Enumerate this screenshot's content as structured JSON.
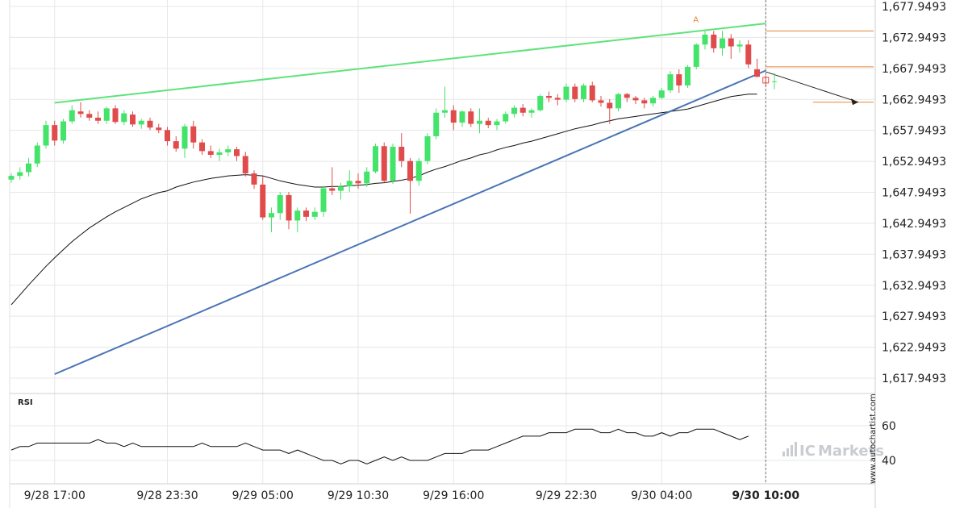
{
  "chart_data": {
    "type": "candlestick",
    "y_ticks": [
      "1,677.9493",
      "1,672.9493",
      "1,667.9493",
      "1,662.9493",
      "1,657.9493",
      "1,652.9493",
      "1,647.9493",
      "1,642.9493",
      "1,637.9493",
      "1,632.9493",
      "1,627.9493",
      "1,622.9493",
      "1,617.9493"
    ],
    "y_tick_values": [
      1677.9493,
      1672.9493,
      1667.9493,
      1662.9493,
      1657.9493,
      1652.9493,
      1647.9493,
      1642.9493,
      1637.9493,
      1632.9493,
      1627.9493,
      1622.9493,
      1617.9493
    ],
    "x_ticks": [
      {
        "label": "9/28 17:00",
        "bar": 5,
        "bold": false
      },
      {
        "label": "9/28 23:30",
        "bar": 18,
        "bold": false
      },
      {
        "label": "9/29 05:00",
        "bar": 29,
        "bold": false
      },
      {
        "label": "9/29 10:30",
        "bar": 40,
        "bold": false
      },
      {
        "label": "9/29 16:00",
        "bar": 51,
        "bold": false
      },
      {
        "label": "9/29 22:30",
        "bar": 64,
        "bold": false
      },
      {
        "label": "9/30 04:00",
        "bar": 75,
        "bold": false
      },
      {
        "label": "9/30 10:00",
        "bar": 87,
        "bold": true
      }
    ],
    "candles": [
      [
        1650.0,
        1651.0,
        1649.5,
        1650.6
      ],
      [
        1650.6,
        1652.0,
        1650.0,
        1651.2
      ],
      [
        1651.2,
        1653.5,
        1650.5,
        1652.6
      ],
      [
        1652.6,
        1656.0,
        1652.0,
        1655.5
      ],
      [
        1655.5,
        1659.5,
        1655.0,
        1658.8
      ],
      [
        1658.8,
        1659.5,
        1655.5,
        1656.3
      ],
      [
        1656.3,
        1659.8,
        1655.8,
        1659.4
      ],
      [
        1659.4,
        1662.0,
        1659.0,
        1661.2
      ],
      [
        1661.0,
        1662.5,
        1660.0,
        1660.6
      ],
      [
        1660.6,
        1661.2,
        1659.5,
        1660.0
      ],
      [
        1660.0,
        1661.0,
        1659.0,
        1659.5
      ],
      [
        1659.5,
        1661.8,
        1659.0,
        1661.5
      ],
      [
        1661.5,
        1662.0,
        1659.0,
        1659.3
      ],
      [
        1659.3,
        1661.2,
        1658.8,
        1660.7
      ],
      [
        1660.5,
        1661.0,
        1658.5,
        1658.9
      ],
      [
        1658.9,
        1659.8,
        1658.2,
        1659.5
      ],
      [
        1659.5,
        1660.0,
        1658.0,
        1658.4
      ],
      [
        1658.4,
        1659.0,
        1657.5,
        1658.0
      ],
      [
        1658.0,
        1658.5,
        1655.5,
        1656.2
      ],
      [
        1656.2,
        1657.0,
        1654.5,
        1655.0
      ],
      [
        1655.0,
        1659.0,
        1653.5,
        1658.6
      ],
      [
        1658.6,
        1659.5,
        1655.0,
        1656.0
      ],
      [
        1656.0,
        1656.5,
        1654.0,
        1654.6
      ],
      [
        1654.6,
        1655.5,
        1653.5,
        1654.0
      ],
      [
        1654.0,
        1655.0,
        1653.0,
        1654.4
      ],
      [
        1654.4,
        1655.5,
        1653.8,
        1654.9
      ],
      [
        1654.9,
        1655.3,
        1653.0,
        1653.8
      ],
      [
        1653.8,
        1654.5,
        1650.5,
        1651.0
      ],
      [
        1651.0,
        1651.5,
        1648.5,
        1649.2
      ],
      [
        1649.2,
        1650.5,
        1643.5,
        1643.9
      ],
      [
        1643.9,
        1645.5,
        1641.5,
        1644.6
      ],
      [
        1644.6,
        1648.0,
        1643.5,
        1647.5
      ],
      [
        1647.5,
        1648.0,
        1642.0,
        1643.4
      ],
      [
        1643.4,
        1645.5,
        1641.5,
        1645.0
      ],
      [
        1645.0,
        1645.5,
        1643.3,
        1644.0
      ],
      [
        1644.0,
        1645.5,
        1643.5,
        1644.8
      ],
      [
        1644.8,
        1649.0,
        1644.0,
        1648.6
      ],
      [
        1648.6,
        1652.0,
        1647.5,
        1648.2
      ],
      [
        1648.2,
        1649.5,
        1646.8,
        1648.9
      ],
      [
        1648.9,
        1651.5,
        1648.0,
        1649.8
      ],
      [
        1649.8,
        1651.0,
        1648.5,
        1649.4
      ],
      [
        1649.4,
        1652.0,
        1648.8,
        1651.3
      ],
      [
        1651.3,
        1655.8,
        1651.0,
        1655.4
      ],
      [
        1655.4,
        1656.0,
        1649.5,
        1649.8
      ],
      [
        1649.8,
        1655.8,
        1649.3,
        1655.3
      ],
      [
        1655.3,
        1657.5,
        1652.0,
        1653.0
      ],
      [
        1653.0,
        1653.5,
        1644.5,
        1649.8
      ],
      [
        1649.8,
        1653.5,
        1649.0,
        1653.0
      ],
      [
        1653.0,
        1657.5,
        1652.5,
        1657.0
      ],
      [
        1657.0,
        1661.5,
        1656.5,
        1660.8
      ],
      [
        1660.8,
        1665.0,
        1660.0,
        1661.2
      ],
      [
        1661.2,
        1662.0,
        1658.0,
        1659.2
      ],
      [
        1659.2,
        1661.2,
        1658.5,
        1661.0
      ],
      [
        1661.0,
        1661.5,
        1658.5,
        1659.0
      ],
      [
        1659.0,
        1661.5,
        1657.5,
        1659.5
      ],
      [
        1659.5,
        1660.0,
        1658.3,
        1658.8
      ],
      [
        1658.8,
        1659.8,
        1658.0,
        1659.4
      ],
      [
        1659.4,
        1661.0,
        1659.0,
        1660.6
      ],
      [
        1660.6,
        1662.0,
        1660.0,
        1661.6
      ],
      [
        1661.6,
        1662.2,
        1660.2,
        1660.8
      ],
      [
        1660.8,
        1661.5,
        1660.0,
        1661.2
      ],
      [
        1661.2,
        1663.8,
        1661.0,
        1663.5
      ],
      [
        1663.5,
        1664.2,
        1662.5,
        1663.2
      ],
      [
        1663.2,
        1663.8,
        1662.0,
        1662.9
      ],
      [
        1662.9,
        1665.5,
        1662.5,
        1665.0
      ],
      [
        1665.0,
        1665.5,
        1662.5,
        1663.0
      ],
      [
        1663.0,
        1665.5,
        1662.5,
        1665.2
      ],
      [
        1665.2,
        1665.8,
        1662.5,
        1662.8
      ],
      [
        1662.8,
        1663.5,
        1661.8,
        1662.4
      ],
      [
        1662.4,
        1663.0,
        1659.0,
        1661.5
      ],
      [
        1661.5,
        1664.0,
        1661.0,
        1663.8
      ],
      [
        1663.8,
        1664.0,
        1662.5,
        1663.2
      ],
      [
        1663.2,
        1663.5,
        1662.2,
        1662.8
      ],
      [
        1662.8,
        1663.2,
        1661.5,
        1662.3
      ],
      [
        1662.3,
        1663.5,
        1661.8,
        1663.2
      ],
      [
        1663.2,
        1664.8,
        1663.0,
        1664.4
      ],
      [
        1664.4,
        1667.5,
        1664.0,
        1667.0
      ],
      [
        1667.0,
        1667.8,
        1664.0,
        1665.2
      ],
      [
        1665.2,
        1668.5,
        1664.8,
        1668.2
      ],
      [
        1668.2,
        1672.0,
        1667.8,
        1671.8
      ],
      [
        1671.8,
        1674.0,
        1671.0,
        1673.4
      ],
      [
        1673.4,
        1674.0,
        1670.5,
        1671.2
      ],
      [
        1671.2,
        1674.0,
        1670.0,
        1672.8
      ],
      [
        1672.8,
        1673.5,
        1669.5,
        1671.5
      ],
      [
        1671.5,
        1672.5,
        1670.5,
        1671.8
      ],
      [
        1671.8,
        1672.5,
        1668.0,
        1668.6
      ],
      [
        1667.8,
        1669.5,
        1666.5,
        1666.6
      ]
    ],
    "last_bar": [
      1666.5,
      1666.8,
      1665.0,
      1665.6
    ],
    "moving_average": [
      1629.8,
      1631.4,
      1633.0,
      1634.5,
      1636.0,
      1637.4,
      1638.7,
      1640.0,
      1641.1,
      1642.2,
      1643.1,
      1644.0,
      1644.8,
      1645.5,
      1646.2,
      1646.9,
      1647.4,
      1647.9,
      1648.2,
      1648.8,
      1649.2,
      1649.6,
      1649.9,
      1650.2,
      1650.4,
      1650.6,
      1650.7,
      1650.8,
      1650.7,
      1650.6,
      1650.2,
      1649.8,
      1649.5,
      1649.2,
      1649.0,
      1648.8,
      1648.8,
      1648.9,
      1648.9,
      1649.0,
      1649.1,
      1649.2,
      1649.4,
      1649.5,
      1649.7,
      1649.9,
      1650.2,
      1650.6,
      1651.2,
      1651.7,
      1652.1,
      1652.6,
      1653.1,
      1653.5,
      1654.0,
      1654.3,
      1654.8,
      1655.2,
      1655.5,
      1655.9,
      1656.2,
      1656.6,
      1657.0,
      1657.4,
      1657.8,
      1658.2,
      1658.5,
      1658.8,
      1659.2,
      1659.5,
      1659.8,
      1660.0,
      1660.2,
      1660.4,
      1660.6,
      1660.8,
      1661.0,
      1661.2,
      1661.4,
      1661.8,
      1662.2,
      1662.6,
      1663.0,
      1663.4,
      1663.6,
      1663.8,
      1663.8
    ],
    "pattern": {
      "upper_line": {
        "from": [
          5,
          1662.4
        ],
        "to": [
          87,
          1675.2
        ]
      },
      "lower_line": {
        "from": [
          5,
          1618.6
        ],
        "to": [
          87,
          1667.6
        ]
      },
      "resistance_level": 1674.0,
      "mid_level": 1668.2,
      "target_level": 1662.5,
      "projection": {
        "from": [
          87,
          1667.4
        ],
        "to": [
          93,
          1662.5
        ]
      },
      "marker_label": "A",
      "marker_bar": 79,
      "marker_value": 1675.0,
      "event_bar": 87
    },
    "rsi": {
      "label": "RSI",
      "ticks": [
        "60",
        "40"
      ],
      "tick_values": [
        60,
        40
      ],
      "values": [
        46,
        48,
        48,
        50,
        50,
        50,
        50,
        50,
        50,
        50,
        52,
        50,
        50,
        48,
        50,
        48,
        48,
        48,
        48,
        48,
        48,
        48,
        50,
        48,
        48,
        48,
        48,
        50,
        48,
        46,
        46,
        46,
        44,
        46,
        44,
        42,
        40,
        40,
        38,
        40,
        40,
        38,
        40,
        42,
        40,
        42,
        40,
        40,
        40,
        42,
        44,
        44,
        44,
        46,
        46,
        46,
        48,
        50,
        52,
        54,
        54,
        54,
        56,
        56,
        56,
        58,
        58,
        58,
        56,
        56,
        58,
        56,
        56,
        54,
        54,
        56,
        54,
        56,
        56,
        58,
        58,
        58,
        56,
        54,
        52,
        54
      ]
    },
    "watermark": {
      "brand_prefix": "IC",
      "brand_suffix": "Markets",
      "vertical": "www.autochartist.com"
    },
    "colors": {
      "up": "#44e36a",
      "down": "#e04b4b",
      "upper_line": "#5ee37a",
      "lower_line": "#4a74b4",
      "levels": "#e6863a",
      "moving_average": "#111111",
      "grid": "#e7e7e7"
    }
  }
}
